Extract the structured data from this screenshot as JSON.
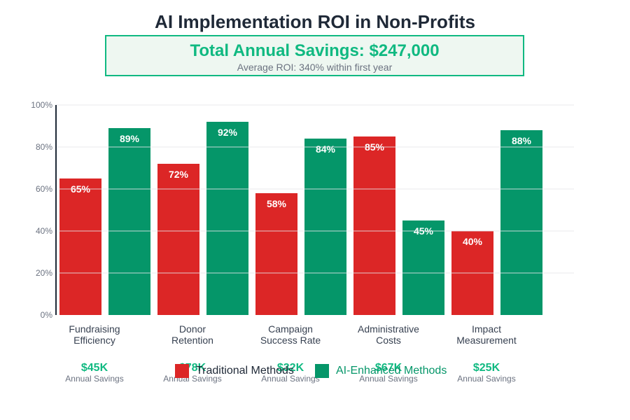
{
  "header": {
    "title": "AI Implementation ROI in Non-Profits",
    "savings_headline": "Total Annual Savings: $247,000",
    "savings_sub": "Average ROI: 340% within first year"
  },
  "colors": {
    "traditional": "#dc2626",
    "ai": "#059669",
    "savings_text": "#10b981",
    "axis": "#1f2937",
    "grid": "#e5e7eb"
  },
  "legend": {
    "traditional": "Traditional Methods",
    "ai": "AI-Enhanced Methods"
  },
  "chart_data": {
    "type": "bar",
    "categories": [
      [
        "Fundraising",
        "Efficiency"
      ],
      [
        "Donor",
        "Retention"
      ],
      [
        "Campaign",
        "Success Rate"
      ],
      [
        "Administrative",
        "Costs"
      ],
      [
        "Impact",
        "Measurement"
      ]
    ],
    "series": [
      {
        "name": "Traditional Methods",
        "values": [
          65,
          72,
          58,
          85,
          40
        ]
      },
      {
        "name": "AI-Enhanced Methods",
        "values": [
          89,
          92,
          84,
          45,
          88
        ]
      }
    ],
    "value_suffix": "%",
    "ylim": [
      0,
      100
    ],
    "yticks": [
      0,
      20,
      40,
      60,
      80,
      100
    ],
    "ytick_labels": [
      "0%",
      "20%",
      "40%",
      "60%",
      "80%",
      "100%"
    ],
    "grid": true,
    "legend_position": "bottom",
    "savings": [
      "$45K",
      "$78K",
      "$32K",
      "$67K",
      "$25K"
    ],
    "savings_caption": "Annual Savings"
  }
}
